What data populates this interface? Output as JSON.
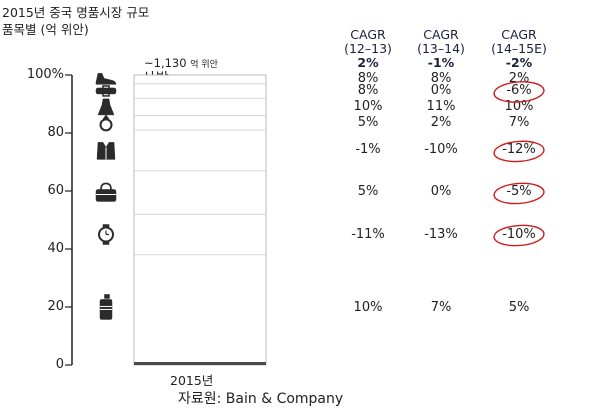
{
  "chart_data": {
    "type": "bar",
    "subtype": "stacked-100-percent",
    "title_lines": [
      "2015년 중국 명품시장 규모",
      "품목별 (억 위안)"
    ],
    "categories": [
      "2015년"
    ],
    "total_label": "~1,130",
    "total_unit": "억 위안",
    "ylim": [
      0,
      100
    ],
    "yticks": [
      "0",
      "20",
      "40",
      "60",
      "80",
      "100%"
    ],
    "ytick_values": [
      0,
      20,
      40,
      60,
      80,
      100
    ],
    "cagr_columns": [
      {
        "line1": "CAGR",
        "line2": "(12–13)",
        "overall": "2%"
      },
      {
        "line1": "CAGR",
        "line2": "(13–14)",
        "overall": "-1%"
      },
      {
        "line1": "CAGR",
        "line2": "(14–15E)",
        "overall": "-2%"
      }
    ],
    "series": [
      {
        "name": "신발",
        "lines": [
          "신발"
        ],
        "icon": "shoe-icon",
        "start": 100,
        "end": 97,
        "cagr": [
          "8%",
          "8%",
          "2%"
        ],
        "circled": false
      },
      {
        "name": "액세사리",
        "lines": [
          "액세사리"
        ],
        "icon": "accessory-icon",
        "start": 97,
        "end": 92,
        "cagr": [
          "8%",
          "0%",
          "-6%"
        ],
        "circled": true
      },
      {
        "name": "여성 의류",
        "lines": [
          "여성 의류"
        ],
        "icon": "dress-icon",
        "start": 92,
        "end": 86,
        "cagr": [
          "10%",
          "11%",
          "10%"
        ],
        "circled": false
      },
      {
        "name": "보석",
        "lines": [
          "보석"
        ],
        "icon": "ring-icon",
        "start": 86,
        "end": 81,
        "cagr": [
          "5%",
          "2%",
          "7%"
        ],
        "circled": false
      },
      {
        "name": "남성 의류",
        "lines": [
          "남성 의류"
        ],
        "icon": "suit-icon",
        "start": 81,
        "end": 67,
        "cagr": [
          "-1%",
          "-10%",
          "-12%"
        ],
        "circled": true
      },
      {
        "name": "가방",
        "lines": [
          "가방"
        ],
        "icon": "bag-icon",
        "start": 67,
        "end": 52,
        "cagr": [
          "5%",
          "0%",
          "-5%"
        ],
        "circled": true
      },
      {
        "name": "시계",
        "lines": [
          "시계"
        ],
        "icon": "watch-icon",
        "start": 52,
        "end": 38,
        "cagr": [
          "-11%",
          "-13%",
          "-10%"
        ],
        "circled": true
      },
      {
        "name": "화장품, 향수, 기타 스킨케어 용품",
        "lines": [
          "화장품, 향수,",
          "기타 스킨케어",
          "용품"
        ],
        "icon": "cosmetics-icon",
        "start": 38,
        "end": 1,
        "cagr": [
          "10%",
          "7%",
          "5%"
        ],
        "circled": false
      }
    ],
    "source": "자료원: Bain & Company",
    "colors": {
      "bar_border": "#bbbbbb",
      "icon": "#2b2b2b",
      "circle": "#cc1f1f",
      "cagr_head": "#1a2240"
    }
  }
}
